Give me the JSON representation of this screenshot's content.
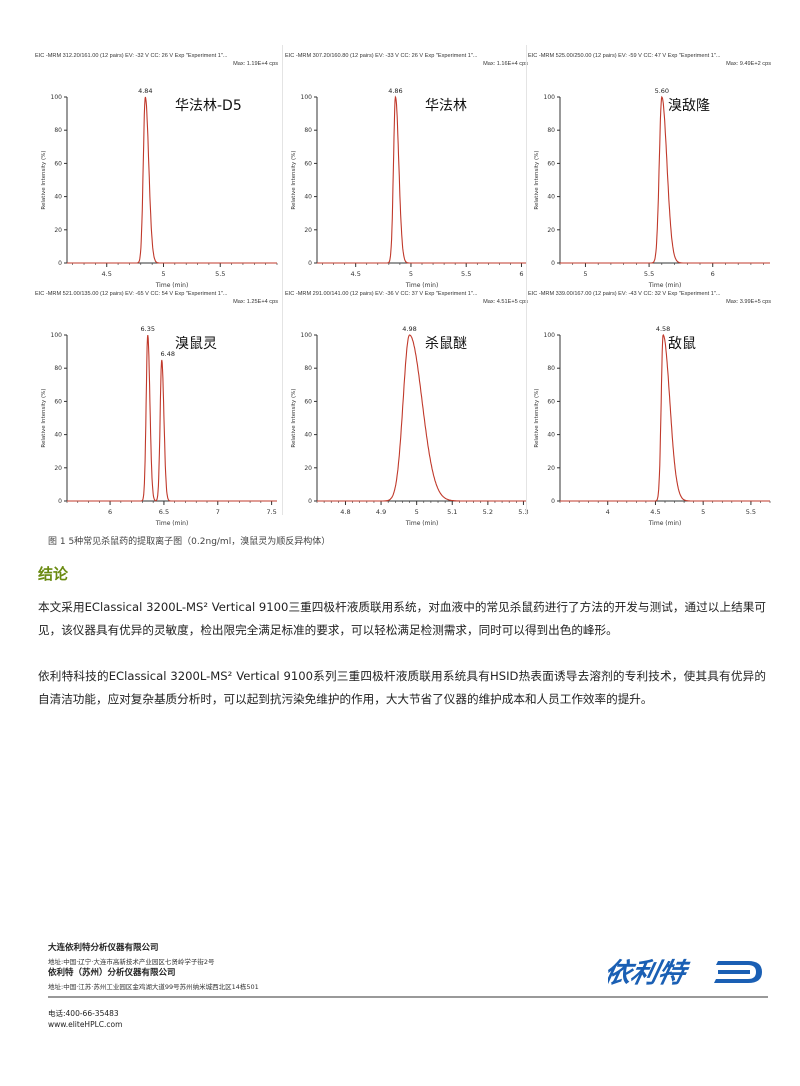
{
  "figure": {
    "ylabel": "Relative Intensity (%)",
    "xlabel": "Time (min)",
    "line_color": "#c0392b",
    "panels": [
      {
        "header": "EIC -MRM 312.20/161.00 (12 pairs) EV: -32 V CC: 26 V Exp \"Experiment 1\"...",
        "max": "Max: 1.19E+4 cps",
        "compound": "华法林-D5",
        "xlim": [
          4.15,
          6.0
        ],
        "xticks": [
          4.5,
          5,
          5.5
        ],
        "peaks": [
          {
            "rt": 4.84,
            "label": "4.84",
            "height": 100,
            "width": 0.018,
            "tail": 0.03
          }
        ]
      },
      {
        "header": "EIC -MRM 307.20/160.80 (12 pairs) EV: -33 V CC: 26 V Exp \"Experiment 1\"...",
        "max": "Max: 1.16E+4 cps",
        "compound": "华法林",
        "xlim": [
          4.15,
          6.05
        ],
        "xticks": [
          4.5,
          5,
          5.5,
          6
        ],
        "peaks": [
          {
            "rt": 4.86,
            "label": "4.86",
            "height": 100,
            "width": 0.018,
            "tail": 0.03
          }
        ]
      },
      {
        "header": "EIC -MRM 525.00/250.00 (12 pairs) EV: -59 V CC: 47 V Exp \"Experiment 1\"...",
        "max": "Max: 9.49E+2 cps",
        "compound": "溴敌隆",
        "xlim": [
          4.8,
          6.45
        ],
        "xticks": [
          5,
          5.5,
          6
        ],
        "peaks": [
          {
            "rt": 5.6,
            "label": "5.60",
            "height": 100,
            "width": 0.02,
            "tail": 0.04
          }
        ]
      },
      {
        "header": "EIC -MRM 521.00/135.00 (12 pairs) EV: -65 V CC: 54 V Exp \"Experiment 1\"...",
        "max": "Max: 1.25E+4 cps",
        "compound": "溴鼠灵",
        "xlim": [
          5.6,
          7.55
        ],
        "xticks": [
          6,
          6.5,
          7,
          7.5
        ],
        "peaks": [
          {
            "rt": 6.35,
            "label": "6.35",
            "height": 100,
            "width": 0.015,
            "tail": 0.02
          },
          {
            "rt": 6.48,
            "label": "6.48",
            "height": 85,
            "width": 0.015,
            "tail": 0.02
          }
        ]
      },
      {
        "header": "EIC -MRM 291.00/141.00 (12 pairs) EV: -36 V CC: 37 V Exp \"Experiment 1\"...",
        "max": "Max: 4.51E+5 cps",
        "compound": "杀鼠醚",
        "xlim": [
          4.72,
          5.31
        ],
        "xticks": [
          4.8,
          4.9,
          5,
          5.1,
          5.2,
          5.3
        ],
        "peaks": [
          {
            "rt": 4.98,
            "label": "4.98",
            "height": 100,
            "width": 0.018,
            "tail": 0.035
          }
        ]
      },
      {
        "header": "EIC -MRM 339.00/167.00 (12 pairs) EV: -43 V CC: 32 V Exp \"Experiment 1\"...",
        "max": "Max: 3.99E+5 cps",
        "compound": "敌鼠",
        "xlim": [
          3.5,
          5.7
        ],
        "xticks": [
          4,
          4.5,
          5,
          5.5
        ],
        "peaks": [
          {
            "rt": 4.58,
            "label": "4.58",
            "height": 100,
            "width": 0.02,
            "tail": 0.07
          }
        ]
      }
    ],
    "yticks": [
      0,
      20,
      40,
      60,
      80,
      100
    ],
    "caption": "图 1 5种常见杀鼠药的提取离子图（0.2ng/ml，溴鼠灵为顺反异构体）"
  },
  "conclusion": {
    "heading": "结论",
    "p1": "本文采用EClassical 3200L-MS² Vertical 9100三重四极杆液质联用系统，对血液中的常见杀鼠药进行了方法的开发与测试，通过以上结果可见，该仪器具有优异的灵敏度，检出限完全满足标准的要求，可以轻松满足检测需求，同时可以得到出色的峰形。",
    "p2": "依利特科技的EClassical 3200L-MS² Vertical 9100系列三重四极杆液质联用系统具有HSID热表面诱导去溶剂的专利技术，使其具有优异的自清洁功能，应对复杂基质分析时，可以起到抗污染免维护的作用，大大节省了仪器的维护成本和人员工作效率的提升。"
  },
  "footer": {
    "company1": "大连依利特分析仪器有限公司",
    "address1": "地址:中国·辽宁·大连市高新技术产业园区七贤岭学子街2号",
    "company2": "依利特（苏州）分析仪器有限公司",
    "address2": "地址:中国·江苏·苏州工业园区金鸡湖大道99号苏州纳米城西北区14栋501",
    "phone": "电话:400-66-35483",
    "website": "www.eliteHPLC.com",
    "logo_text": "依利特",
    "logo_color": "#1a5fb4"
  }
}
